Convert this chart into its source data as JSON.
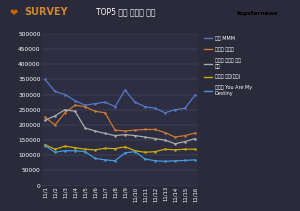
{
  "title": "TOP5 일별 득표수 추이",
  "fig_bg_color": "#2a2a3a",
  "plot_bg_color": "#2e2e42",
  "x_labels": [
    "11/1",
    "11/2",
    "11/3",
    "11/4",
    "11/5",
    "11/6",
    "11/7",
    "11/8",
    "11/9",
    "11/10",
    "11/11",
    "11/12",
    "11/13",
    "11/14",
    "11/15",
    "11/16"
  ],
  "series": [
    {
      "name": "영탁 MMM",
      "color": "#5577cc",
      "values": [
        350000,
        310000,
        300000,
        280000,
        265000,
        270000,
        275000,
        260000,
        315000,
        275000,
        260000,
        255000,
        240000,
        250000,
        255000,
        298000
      ]
    },
    {
      "name": "장민호 화조리",
      "color": "#cc7733",
      "values": [
        225000,
        200000,
        240000,
        265000,
        260000,
        245000,
        240000,
        183000,
        180000,
        183000,
        185000,
        185000,
        175000,
        160000,
        165000,
        173000
      ]
    },
    {
      "name": "이승윤 패허가 된다\n해도",
      "color": "#aaaaaa",
      "values": [
        215000,
        230000,
        250000,
        245000,
        190000,
        180000,
        172000,
        165000,
        168000,
        165000,
        160000,
        155000,
        150000,
        138000,
        145000,
        155000
      ]
    },
    {
      "name": "송가인 연기(聯歌)",
      "color": "#ccaa00",
      "values": [
        135000,
        120000,
        130000,
        125000,
        120000,
        118000,
        123000,
        122000,
        128000,
        115000,
        110000,
        112000,
        120000,
        118000,
        120000,
        120000
      ]
    },
    {
      "name": "김기태 You Are My\nDestiny",
      "color": "#4499dd",
      "values": [
        132000,
        110000,
        115000,
        115000,
        112000,
        90000,
        85000,
        82000,
        108000,
        112000,
        88000,
        82000,
        80000,
        82000,
        83000,
        85000
      ]
    }
  ],
  "ylim": [
    0,
    500000
  ],
  "yticks": [
    0,
    50000,
    100000,
    150000,
    200000,
    250000,
    300000,
    350000,
    400000,
    450000,
    500000
  ],
  "survey_text": "SURVEY",
  "topstars_text": "topstarnews"
}
